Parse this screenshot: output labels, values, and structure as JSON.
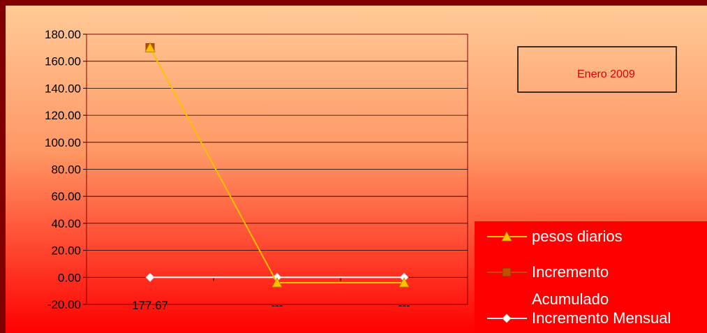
{
  "chart_data": {
    "type": "line",
    "categories": [
      "177.67",
      "---",
      "---"
    ],
    "series": [
      {
        "name": "pesos diarios",
        "values": [
          170,
          -4,
          -4
        ],
        "color": "#ffc000",
        "marker": "triangle"
      },
      {
        "name": "Incremento Acumulado",
        "values": [
          170,
          null,
          null
        ],
        "color": "#c05000",
        "marker": "square"
      },
      {
        "name": "Incremento Mensual",
        "values": [
          0,
          0,
          0
        ],
        "color": "#ffffff",
        "marker": "diamond"
      }
    ],
    "ylim": [
      -20,
      180
    ],
    "yticks": [
      "180.00",
      "160.00",
      "140.00",
      "120.00",
      "100.00",
      "80.00",
      "60.00",
      "40.00",
      "20.00",
      "0.00",
      "-20.00"
    ],
    "grid": true,
    "annotation": "Enero 2009",
    "legend": {
      "placement": "bottom-right",
      "items": [
        "pesos diarios",
        "Incremento",
        "Acumulado",
        "Incremento Mensual"
      ]
    },
    "colors": {
      "border": "#800000",
      "background_top": "#ffcc99",
      "background_bottom": "#ff0000",
      "legend_background": "#ff0000",
      "annotation_text": "#e00000"
    }
  }
}
